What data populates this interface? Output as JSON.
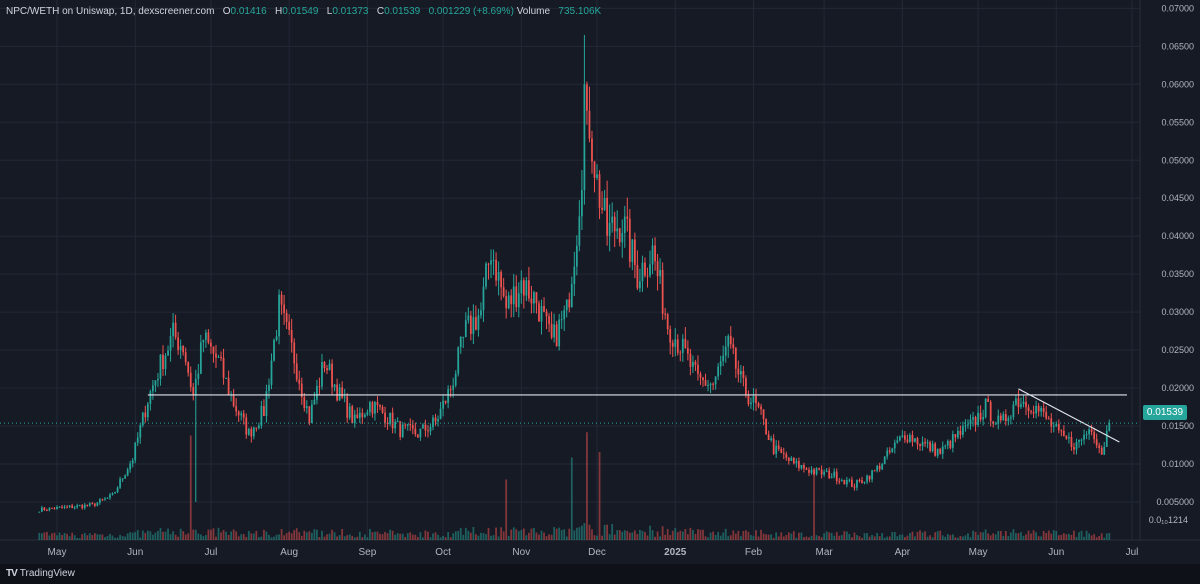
{
  "header": {
    "pair": "NPC/WETH on Uniswap, 1D, dexscreener.com",
    "o_label": "O",
    "o_value": "0.01416",
    "h_label": "H",
    "h_value": "0.01549",
    "l_label": "L",
    "l_value": "0.01373",
    "c_label": "C",
    "c_value": "0.01539",
    "change": "0.001229 (+8.69%)",
    "volume_label": "Volume",
    "volume_value": "735.106K"
  },
  "brand": {
    "logo": "TV",
    "name": "TradingView"
  },
  "colors": {
    "up": "#26a69a",
    "down": "#ef5350",
    "background": "#161a25",
    "grid": "#232836"
  },
  "price_tag": "0.01539",
  "chart_data": {
    "type": "candlestick",
    "title": "",
    "ylim": [
      0,
      0.0711
    ],
    "y_ticks": [
      "0.07000",
      "0.06500",
      "0.06000",
      "0.05500",
      "0.05000",
      "0.04500",
      "0.04000",
      "0.03500",
      "0.03000",
      "0.02500",
      "0.02000",
      "0.01500",
      "0.01000",
      "0.005000"
    ],
    "y_tick_values": [
      0.07,
      0.065,
      0.06,
      0.055,
      0.05,
      0.045,
      0.04,
      0.035,
      0.03,
      0.025,
      0.02,
      0.015,
      0.01,
      0.005
    ],
    "y_bottom_label": "0.0₁₀1214",
    "x_ticks": [
      "May",
      "Jun",
      "Jul",
      "Aug",
      "Sep",
      "Oct",
      "Nov",
      "Dec",
      "2025",
      "Feb",
      "Mar",
      "Apr",
      "May",
      "Jun",
      "Jul"
    ],
    "x_tick_days": [
      0,
      31,
      61,
      92,
      123,
      153,
      184,
      214,
      245,
      276,
      304,
      335,
      365,
      396,
      426
    ],
    "first_day": -7,
    "last_day": 417,
    "last_close": 0.01539,
    "horizontal_line": 0.0191,
    "trendline": {
      "from": [
        381,
        0.0199
      ],
      "to": [
        421,
        0.0129
      ]
    },
    "anchors": [
      [
        -7,
        0.004
      ],
      [
        14,
        0.0046
      ],
      [
        22,
        0.0058
      ],
      [
        30,
        0.0108
      ],
      [
        36,
        0.0185
      ],
      [
        42,
        0.024
      ],
      [
        46,
        0.027
      ],
      [
        50,
        0.0255
      ],
      [
        54,
        0.019
      ],
      [
        58,
        0.0265
      ],
      [
        64,
        0.0235
      ],
      [
        70,
        0.018
      ],
      [
        76,
        0.014
      ],
      [
        82,
        0.017
      ],
      [
        88,
        0.0305
      ],
      [
        94,
        0.024
      ],
      [
        100,
        0.016
      ],
      [
        106,
        0.0235
      ],
      [
        112,
        0.019
      ],
      [
        118,
        0.0155
      ],
      [
        124,
        0.018
      ],
      [
        130,
        0.0165
      ],
      [
        136,
        0.0145
      ],
      [
        143,
        0.014
      ],
      [
        150,
        0.0155
      ],
      [
        156,
        0.02
      ],
      [
        162,
        0.0275
      ],
      [
        168,
        0.03
      ],
      [
        172,
        0.0385
      ],
      [
        178,
        0.0305
      ],
      [
        184,
        0.034
      ],
      [
        190,
        0.0315
      ],
      [
        196,
        0.026
      ],
      [
        202,
        0.03
      ],
      [
        206,
        0.041
      ],
      [
        210,
        0.058
      ],
      [
        214,
        0.047
      ],
      [
        218,
        0.0405
      ],
      [
        224,
        0.042
      ],
      [
        230,
        0.035
      ],
      [
        236,
        0.038
      ],
      [
        242,
        0.0285
      ],
      [
        248,
        0.025
      ],
      [
        254,
        0.021
      ],
      [
        260,
        0.0205
      ],
      [
        266,
        0.0255
      ],
      [
        272,
        0.02
      ],
      [
        278,
        0.017
      ],
      [
        284,
        0.012
      ],
      [
        292,
        0.01
      ],
      [
        300,
        0.009
      ],
      [
        308,
        0.0085
      ],
      [
        316,
        0.0072
      ],
      [
        324,
        0.009
      ],
      [
        330,
        0.0115
      ],
      [
        336,
        0.014
      ],
      [
        344,
        0.0125
      ],
      [
        350,
        0.0115
      ],
      [
        356,
        0.0135
      ],
      [
        362,
        0.015
      ],
      [
        368,
        0.0175
      ],
      [
        374,
        0.015
      ],
      [
        380,
        0.0185
      ],
      [
        386,
        0.018
      ],
      [
        392,
        0.016
      ],
      [
        398,
        0.0135
      ],
      [
        404,
        0.0125
      ],
      [
        410,
        0.015
      ],
      [
        414,
        0.0115
      ],
      [
        417,
        0.0154
      ]
    ],
    "volume_spikes": {
      "210": 0.98,
      "204": 0.75,
      "215": 0.8,
      "53": 0.95,
      "178": 0.55,
      "300": 0.65
    }
  }
}
